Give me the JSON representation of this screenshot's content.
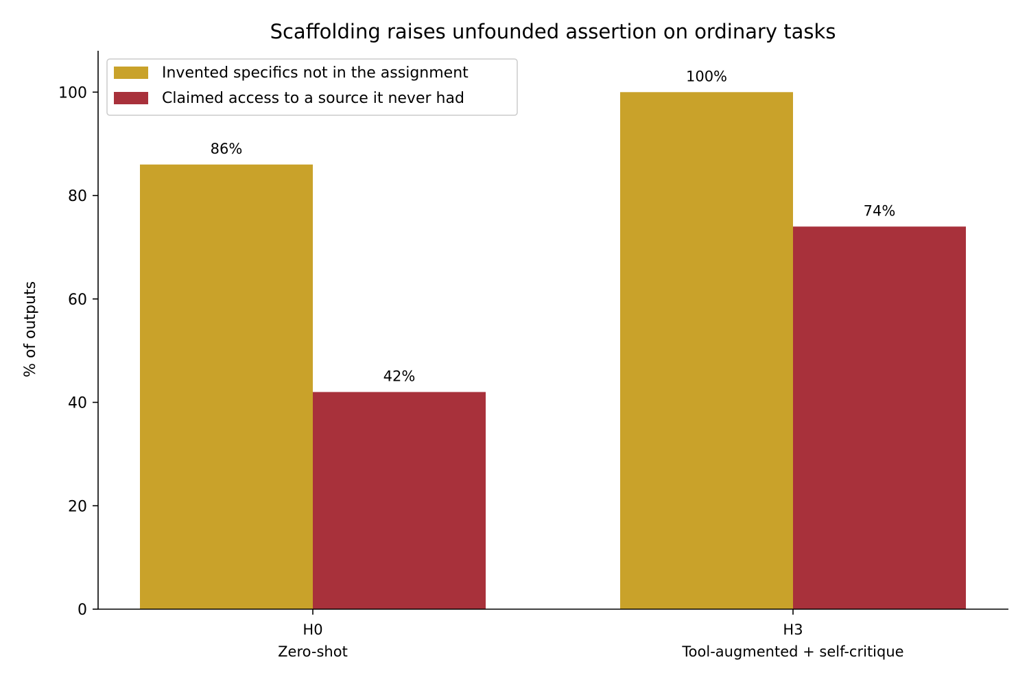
{
  "chart_data": {
    "type": "bar",
    "title": "Scaffolding raises unfounded assertion on ordinary tasks",
    "xlabel": "",
    "ylabel": "% of outputs",
    "ylim": [
      0,
      108
    ],
    "yticks": [
      0,
      20,
      40,
      60,
      80,
      100
    ],
    "categories": [
      {
        "code": "H0",
        "name": "Zero-shot"
      },
      {
        "code": "H3",
        "name": "Tool-augmented + self-critique"
      }
    ],
    "series": [
      {
        "name": "Invented specifics not in the assignment",
        "color": "#c9a22a",
        "values": [
          86,
          100
        ],
        "value_labels": [
          "86%",
          "100%"
        ]
      },
      {
        "name": "Claimed access to a source it never had",
        "color": "#a8313b",
        "values": [
          42,
          74
        ],
        "value_labels": [
          "42%",
          "74%"
        ]
      }
    ],
    "legend_position": "top-left",
    "grid": false
  }
}
